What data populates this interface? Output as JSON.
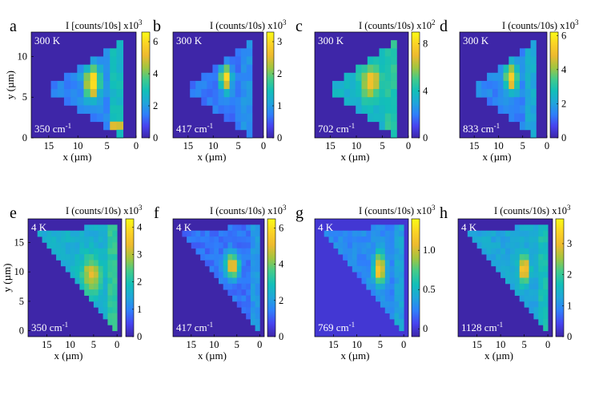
{
  "figure": {
    "colormap": [
      "#3e26a8",
      "#4743f0",
      "#2f7ffb",
      "#1fa6da",
      "#12bfb9",
      "#42cb8b",
      "#a3c53e",
      "#edba2f",
      "#fbd325",
      "#f9fb15"
    ]
  },
  "chart_data": [
    {
      "type": "heatmap",
      "panel": "a",
      "temperature": "300 K",
      "wavenumber": "350 cm",
      "wavenumber_unit_exp": "-1",
      "colorbar_title": "I [counts/10s] x10",
      "colorbar_exp": "3",
      "colorbar_ticks": [
        "0",
        "2",
        "4",
        "6"
      ],
      "clim": [
        0,
        6.6
      ],
      "xlabel": "x (µm)",
      "xticks": [
        "15",
        "10",
        "5",
        "0"
      ],
      "xlim": [
        18,
        0
      ],
      "ylabel": "y (µm)",
      "yticks": [
        "0",
        "5",
        "10"
      ],
      "ylim": [
        0,
        13
      ],
      "grid": {
        "rows": 13,
        "cols": 16
      },
      "shape": {
        "xmin": 2.5,
        "xmax": 15.5,
        "ybot": 0.5,
        "ytop": 11.5,
        "base_axis": "y"
      },
      "hotspot": {
        "x": 7.5,
        "y": 6.8,
        "rx": 1.4,
        "ry": 2.2
      },
      "peak": 6.3,
      "base": 1.6,
      "edge": 2.8,
      "edge_side": "low",
      "extra": {
        "x": 3.5,
        "y": 1.5,
        "v": 4.8
      }
    },
    {
      "type": "heatmap",
      "panel": "b",
      "temperature": "300 K",
      "wavenumber": "417 cm",
      "wavenumber_unit_exp": "-1",
      "colorbar_title": "I (counts/10s) x10",
      "colorbar_exp": "3",
      "colorbar_ticks": [
        "0",
        "1",
        "2",
        "3"
      ],
      "clim": [
        0,
        3.3
      ],
      "xlabel": "x (µm)",
      "xticks": [
        "15",
        "10",
        "5",
        "0"
      ],
      "xlim": [
        18,
        0
      ],
      "ylabel": "",
      "yticks": [],
      "ylim": [
        0,
        13
      ],
      "grid": {
        "rows": 13,
        "cols": 16
      },
      "shape": {
        "xmin": 2.5,
        "xmax": 15.5,
        "ybot": 0.5,
        "ytop": 11.5,
        "base_axis": "y"
      },
      "hotspot": {
        "x": 7.5,
        "y": 7.3,
        "rx": 1.2,
        "ry": 1.6
      },
      "peak": 3.2,
      "base": 0.7,
      "edge": 0.9,
      "edge_side": "low",
      "extra": null
    },
    {
      "type": "heatmap",
      "panel": "c",
      "temperature": "300 K",
      "wavenumber": "702 cm",
      "wavenumber_unit_exp": "-1",
      "colorbar_title": "I (counts/10s) x10",
      "colorbar_exp": "2",
      "colorbar_ticks": [
        "0",
        "4",
        "8"
      ],
      "clim": [
        0,
        9
      ],
      "xlabel": "x (µm)",
      "xticks": [
        "15",
        "10",
        "5",
        "0"
      ],
      "xlim": [
        18,
        0
      ],
      "ylabel": "",
      "yticks": [],
      "ylim": [
        0,
        13
      ],
      "grid": {
        "rows": 13,
        "cols": 16
      },
      "shape": {
        "xmin": 2.5,
        "xmax": 15.5,
        "ybot": 0.5,
        "ytop": 11.5,
        "base_axis": "y"
      },
      "hotspot": {
        "x": 7.3,
        "y": 7.0,
        "rx": 1.8,
        "ry": 2.0
      },
      "peak": 7.8,
      "base": 3.6,
      "edge": 4.4,
      "edge_side": "low",
      "extra": null
    },
    {
      "type": "heatmap",
      "panel": "d",
      "temperature": "300 K",
      "wavenumber": "833 cm",
      "wavenumber_unit_exp": "-1",
      "colorbar_title": "I (counts/10s) x10",
      "colorbar_exp": "3",
      "colorbar_ticks": [
        "0",
        "2",
        "4",
        "6"
      ],
      "clim": [
        0,
        6.2
      ],
      "xlabel": "x (µm)",
      "xticks": [
        "15",
        "10",
        "5",
        "0"
      ],
      "xlim": [
        18,
        0
      ],
      "ylabel": "",
      "yticks": [],
      "ylim": [
        0,
        13
      ],
      "grid": {
        "rows": 13,
        "cols": 16
      },
      "shape": {
        "xmin": 2.5,
        "xmax": 15.5,
        "ybot": 0.5,
        "ytop": 11.5,
        "base_axis": "y"
      },
      "hotspot": {
        "x": 7.3,
        "y": 7.3,
        "rx": 1.4,
        "ry": 1.8
      },
      "peak": 5.6,
      "base": 1.5,
      "edge": 2.2,
      "edge_side": "low",
      "extra": null
    },
    {
      "type": "heatmap",
      "panel": "e",
      "temperature": "4 K",
      "wavenumber": "350 cm",
      "wavenumber_unit_exp": "-1",
      "colorbar_title": "I (counts/10s) x10",
      "colorbar_exp": "3",
      "colorbar_ticks": [
        "0",
        "1",
        "2",
        "3",
        "4"
      ],
      "clim": [
        0,
        4.3
      ],
      "xlabel": "x (µm)",
      "xticks": [
        "15",
        "10",
        "5",
        "0"
      ],
      "xlim": [
        19,
        -1
      ],
      "ylabel": "y (µm)",
      "yticks": [
        "0",
        "5",
        "10",
        "15"
      ],
      "ylim": [
        -1,
        19
      ],
      "grid": {
        "rows": 20,
        "cols": 20
      },
      "shape": {
        "xmin": 0.5,
        "xmax": 17.5,
        "ybot": 0.5,
        "ytop": 17.5,
        "base_axis": "x"
      },
      "hotspot": {
        "x": 5.5,
        "y": 9.5,
        "rx": 2.2,
        "ry": 3.2
      },
      "peak": 3.3,
      "base": 1.6,
      "edge": 2.2,
      "edge_side": "low",
      "extra": null
    },
    {
      "type": "heatmap",
      "panel": "f",
      "temperature": "4 K",
      "wavenumber": "417 cm",
      "wavenumber_unit_exp": "-1",
      "colorbar_title": "I (counts/10s) x10",
      "colorbar_exp": "3",
      "colorbar_ticks": [
        "0",
        "2",
        "4",
        "6"
      ],
      "clim": [
        0,
        6.5
      ],
      "xlabel": "x (µm)",
      "xticks": [
        "15",
        "10",
        "5",
        "0"
      ],
      "xlim": [
        19,
        -1
      ],
      "ylabel": "",
      "yticks": [],
      "ylim": [
        -1,
        19
      ],
      "grid": {
        "rows": 20,
        "cols": 20
      },
      "shape": {
        "xmin": 0.5,
        "xmax": 17.5,
        "ybot": 0.5,
        "ytop": 17.5,
        "base_axis": "x"
      },
      "hotspot": {
        "x": 6.0,
        "y": 11.0,
        "rx": 1.6,
        "ry": 2.2
      },
      "peak": 5.8,
      "base": 1.3,
      "edge": 1.9,
      "edge_side": "low",
      "extra": null
    },
    {
      "type": "heatmap",
      "panel": "g",
      "temperature": "4 K",
      "wavenumber": "769 cm",
      "wavenumber_unit_exp": "-1",
      "colorbar_title": "I (counts/10s) x10",
      "colorbar_exp": "3",
      "colorbar_ticks": [
        "0",
        "0.5",
        "1.0"
      ],
      "clim": [
        -0.1,
        1.4
      ],
      "xlabel": "x (µm)",
      "xticks": [
        "15",
        "10",
        "5",
        "0"
      ],
      "xlim": [
        19,
        -1
      ],
      "ylabel": "",
      "yticks": [],
      "ylim": [
        -1,
        19
      ],
      "grid": {
        "rows": 20,
        "cols": 20
      },
      "shape": {
        "xmin": 0.5,
        "xmax": 17.5,
        "ybot": 0.5,
        "ytop": 17.5,
        "base_axis": "x"
      },
      "hotspot": {
        "x": 5.2,
        "y": 10.5,
        "rx": 1.3,
        "ry": 2.8
      },
      "peak": 1.25,
      "base": 0.28,
      "edge": 0.4,
      "edge_side": "low",
      "extra": null
    },
    {
      "type": "heatmap",
      "panel": "h",
      "temperature": "4 K",
      "wavenumber": "1128 cm",
      "wavenumber_unit_exp": "-1",
      "colorbar_title": "I (counts/10s) x10",
      "colorbar_exp": "3",
      "colorbar_ticks": [
        "0",
        "1",
        "2",
        "3"
      ],
      "clim": [
        0,
        3.8
      ],
      "xlabel": "x (µm)",
      "xticks": [
        "15",
        "10",
        "5",
        "0"
      ],
      "xlim": [
        19,
        -1
      ],
      "ylabel": "",
      "yticks": [],
      "ylim": [
        -1,
        19
      ],
      "grid": {
        "rows": 20,
        "cols": 20
      },
      "shape": {
        "xmin": 0.5,
        "xmax": 17.5,
        "ybot": 0.5,
        "ytop": 17.5,
        "base_axis": "x"
      },
      "hotspot": {
        "x": 5.0,
        "y": 10.5,
        "rx": 1.1,
        "ry": 2.4
      },
      "peak": 3.6,
      "base": 1.3,
      "edge": 1.7,
      "edge_side": "low",
      "extra": null
    }
  ]
}
